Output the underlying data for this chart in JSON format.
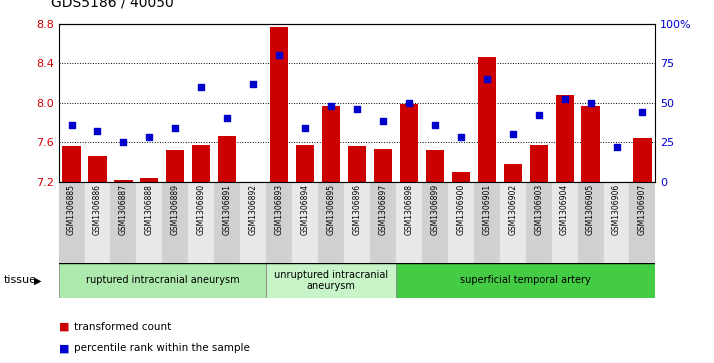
{
  "title": "GDS5186 / 40050",
  "samples": [
    "GSM1306885",
    "GSM1306886",
    "GSM1306887",
    "GSM1306888",
    "GSM1306889",
    "GSM1306890",
    "GSM1306891",
    "GSM1306892",
    "GSM1306893",
    "GSM1306894",
    "GSM1306895",
    "GSM1306896",
    "GSM1306897",
    "GSM1306898",
    "GSM1306899",
    "GSM1306900",
    "GSM1306901",
    "GSM1306902",
    "GSM1306903",
    "GSM1306904",
    "GSM1306905",
    "GSM1306906",
    "GSM1306907"
  ],
  "transformed_count": [
    7.56,
    7.46,
    7.22,
    7.24,
    7.52,
    7.57,
    7.66,
    7.2,
    8.77,
    7.57,
    7.97,
    7.56,
    7.53,
    7.99,
    7.52,
    7.3,
    8.46,
    7.38,
    7.57,
    8.08,
    7.97,
    7.2,
    7.64
  ],
  "percentile_rank": [
    36,
    32,
    25,
    28,
    34,
    60,
    40,
    62,
    80,
    34,
    48,
    46,
    38,
    50,
    36,
    28,
    65,
    30,
    42,
    52,
    50,
    22,
    44
  ],
  "bar_color": "#cc0000",
  "dot_color": "#0000cc",
  "ylim_left": [
    7.2,
    8.8
  ],
  "ylim_right": [
    0,
    100
  ],
  "yticks_left": [
    7.2,
    7.6,
    8.0,
    8.4,
    8.8
  ],
  "yticks_right": [
    0,
    25,
    50,
    75,
    100
  ],
  "ytick_labels_right": [
    "0",
    "25",
    "50",
    "75",
    "100%"
  ],
  "gridlines": [
    7.6,
    8.0,
    8.4
  ],
  "groups": [
    {
      "label": "ruptured intracranial aneurysm",
      "start": 0,
      "end": 8,
      "color": "#aeeaae"
    },
    {
      "label": "unruptured intracranial\naneurysm",
      "start": 8,
      "end": 13,
      "color": "#c8f5c8"
    },
    {
      "label": "superficial temporal artery",
      "start": 13,
      "end": 23,
      "color": "#44cc44"
    }
  ],
  "legend_bar_label": "transformed count",
  "legend_dot_label": "percentile rank within the sample",
  "tissue_label": "tissue",
  "col_bg_even": "#d0d0d0",
  "col_bg_odd": "#e8e8e8",
  "plot_bg": "#ffffff"
}
